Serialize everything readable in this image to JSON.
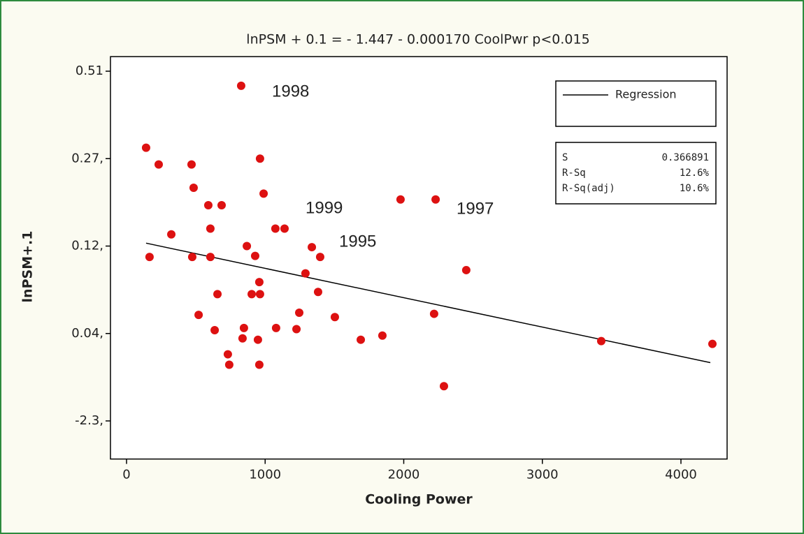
{
  "chart_data": {
    "type": "scatter",
    "title": "lnPSM + 0.1 =  - 1.447 - 0.000170 CoolPwr   p<0.015",
    "x_label": "Cooling Power",
    "y_label": "lnPSM+.1",
    "xlim": [
      -116,
      4333
    ],
    "xticks": [
      0,
      1000,
      2000,
      3000,
      4000
    ],
    "ylim": [
      -3.32,
      0.55
    ],
    "yticks": [
      {
        "value": 0.51,
        "label": "0.51"
      },
      {
        "value": 0.27,
        "label": "0.27,"
      },
      {
        "value": 0.12,
        "label": "0.12,"
      },
      {
        "value": 0.04,
        "label": "0.04,"
      },
      {
        "value": -2.3,
        "label": "-2.3,"
      }
    ],
    "grid": false,
    "series": [
      {
        "color": "#dd1111",
        "x": [
          827,
          141,
          232,
          469,
          963,
          484,
          989,
          590,
          686,
          1977,
          2230,
          605,
          1074,
          1140,
          323,
          166,
          474,
          605,
          868,
          928,
          1337,
          1397,
          2451,
          1291,
          958,
          1382,
          656,
          903,
          963,
          1246,
          520,
          1503,
          2219,
          636,
          847,
          1079,
          1226,
          837,
          948,
          1690,
          1846,
          3425,
          4227,
          731,
          741,
          958,
          2290
        ],
        "values": [
          0.47,
          0.3,
          0.26,
          0.26,
          0.27,
          0.22,
          0.21,
          0.19,
          0.19,
          0.2,
          0.2,
          0.15,
          0.15,
          0.15,
          0.14,
          0.11,
          0.11,
          0.11,
          0.12,
          0.111,
          0.119,
          0.11,
          0.098,
          0.095,
          0.087,
          0.078,
          0.076,
          0.076,
          0.076,
          0.059,
          0.057,
          0.055,
          0.058,
          0.043,
          0.045,
          0.045,
          0.044,
          -0.09,
          -0.127,
          -0.127,
          -0.016,
          -0.164,
          -0.239,
          -0.517,
          -0.796,
          -0.796,
          -1.37
        ]
      }
    ],
    "regression": {
      "name": "Regression",
      "color": "#000000",
      "x": [
        141,
        4212
      ],
      "values": [
        0.125,
        -0.74
      ]
    },
    "annotations": [
      "1998",
      "1999",
      "1995",
      "1997"
    ],
    "stats": [
      {
        "label": "S",
        "value": "0.366891"
      },
      {
        "label": "R-Sq",
        "value": "12.6%"
      },
      {
        "label": "R-Sq(adj)",
        "value": "10.6%"
      }
    ]
  }
}
